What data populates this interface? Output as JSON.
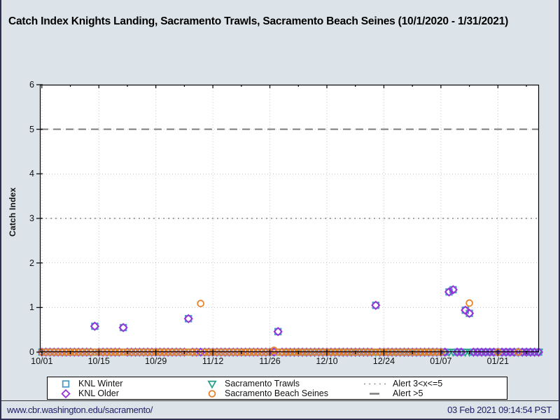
{
  "footer": {
    "url": "www.cbr.washington.edu/sacramento/",
    "datetime": "03 Feb 2021 09:14:54 PST"
  },
  "colors": {
    "background": "#dce4e9",
    "plot_background": "#ffffff",
    "frame": "#000000",
    "gridline": "#c8c8c8",
    "footer_text": "#20206a",
    "knl_winter": "#4a9cc8",
    "knl_older": "#9a30d8",
    "sacramento_trawls": "#2aa189",
    "sacramento_beach_seines": "#e8832c",
    "alert_dotted": "#8a8a8a",
    "alert_dashed": "#7d7d7d"
  },
  "chart_data": {
    "type": "scatter",
    "title": "Catch Index Knights Landing, Sacramento Trawls, Sacramento Beach Seines (10/1/2020 - 1/31/2021)",
    "xlabel": "",
    "ylabel": "Catch Index",
    "ylim": [
      0,
      6
    ],
    "yticks": [
      0,
      1,
      2,
      3,
      4,
      5,
      6
    ],
    "start_date": "10/01/2020",
    "end_date": "01/31/2021",
    "x_range_days": [
      0,
      122
    ],
    "xticks": [
      {
        "label": "10/01",
        "day": 0
      },
      {
        "label": "10/15",
        "day": 14
      },
      {
        "label": "10/29",
        "day": 28
      },
      {
        "label": "11/12",
        "day": 42
      },
      {
        "label": "11/26",
        "day": 56
      },
      {
        "label": "12/10",
        "day": 70
      },
      {
        "label": "12/24",
        "day": 84
      },
      {
        "label": "01/07",
        "day": 98
      },
      {
        "label": "01/21",
        "day": 112
      }
    ],
    "minor_tick_days": [
      7,
      21,
      35,
      49,
      63,
      77,
      91,
      105,
      119
    ],
    "grid": true,
    "legend_position": "bottom",
    "series": [
      {
        "name": "KNL Winter",
        "marker": "square",
        "color": "#4a9cc8",
        "sampled_zero_days": {
          "start_day": 0,
          "end_day": 122
        },
        "points": [
          {
            "date": "10/14",
            "day": 13,
            "value": 0.58
          },
          {
            "date": "10/21",
            "day": 20,
            "value": 0.55
          },
          {
            "date": "11/06",
            "day": 36,
            "value": 0.75
          },
          {
            "date": "11/28",
            "day": 58,
            "value": 0.46
          },
          {
            "date": "12/22",
            "day": 82,
            "value": 1.05
          },
          {
            "date": "01/09",
            "day": 100,
            "value": 1.35
          },
          {
            "date": "01/10",
            "day": 101,
            "value": 1.4
          },
          {
            "date": "01/13",
            "day": 104,
            "value": 0.94
          },
          {
            "date": "01/14",
            "day": 105,
            "value": 0.87
          }
        ]
      },
      {
        "name": "KNL Older",
        "marker": "diamond",
        "color": "#9a30d8",
        "sampled_zero_days": {
          "start_day": 0,
          "end_day": 122
        },
        "points": [
          {
            "date": "10/14",
            "day": 13,
            "value": 0.58
          },
          {
            "date": "10/21",
            "day": 20,
            "value": 0.55
          },
          {
            "date": "11/06",
            "day": 36,
            "value": 0.75
          },
          {
            "date": "11/28",
            "day": 58,
            "value": 0.46
          },
          {
            "date": "12/22",
            "day": 82,
            "value": 1.05
          },
          {
            "date": "01/09",
            "day": 100,
            "value": 1.35
          },
          {
            "date": "01/10",
            "day": 101,
            "value": 1.4
          },
          {
            "date": "01/13",
            "day": 104,
            "value": 0.94
          },
          {
            "date": "01/14",
            "day": 105,
            "value": 0.87
          }
        ]
      },
      {
        "name": "Sacramento Trawls",
        "marker": "triangle-down",
        "color": "#2aa189",
        "sampled_zero_days": {
          "start_day": 60,
          "end_day": 122
        },
        "points": []
      },
      {
        "name": "Sacramento Beach Seines",
        "marker": "circle",
        "color": "#e8832c",
        "sampled_zero_days": {
          "start_day": 0,
          "end_day": 98
        },
        "extra_zero_days": [
          112,
          117
        ],
        "points": [
          {
            "date": "11/09",
            "day": 39,
            "value": 1.09
          },
          {
            "date": "11/27",
            "day": 57,
            "value": 0.04
          },
          {
            "date": "01/14",
            "day": 105,
            "value": 1.1
          }
        ]
      }
    ],
    "alert_lines": [
      {
        "label": "Alert 3<x<=5",
        "y": 3,
        "style": "dotted",
        "color": "#8a8a8a"
      },
      {
        "label": "Alert >5",
        "y": 5,
        "style": "dashed",
        "color": "#7d7d7d"
      }
    ]
  }
}
